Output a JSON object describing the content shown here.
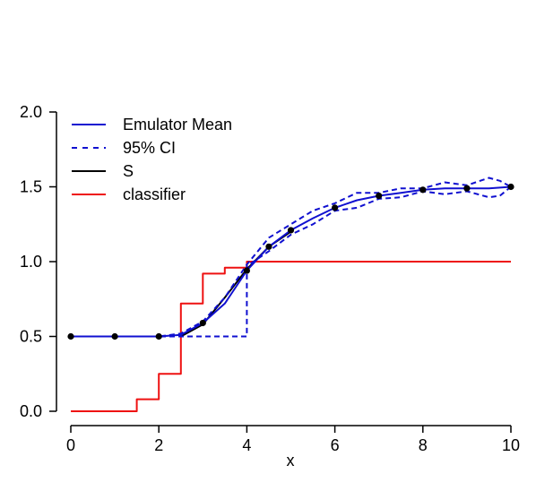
{
  "chart_data": {
    "type": "line",
    "title": "",
    "xlabel": "x",
    "ylabel": "",
    "xlim": [
      0,
      10
    ],
    "ylim": [
      0,
      2
    ],
    "xticks": [
      0,
      2,
      4,
      6,
      8,
      10
    ],
    "yticks": [
      "0.0",
      "0.5",
      "1.0",
      "1.5",
      "2.0"
    ],
    "grid": false,
    "legend_position": "top-left",
    "colors": {
      "blue": "#1010d0",
      "black": "#000000",
      "red": "#ee1111"
    },
    "legend": [
      {
        "label": "Emulator Mean",
        "style": "solid",
        "color": "#1010d0"
      },
      {
        "label": "95% CI",
        "style": "dashed",
        "color": "#1010d0"
      },
      {
        "label": "S",
        "style": "solid",
        "color": "#000000"
      },
      {
        "label": "classifier",
        "style": "solid",
        "color": "#ee1111"
      }
    ],
    "design_points": {
      "x": [
        0,
        1,
        2,
        3,
        4,
        4.5,
        5,
        6,
        7,
        8,
        9,
        10
      ],
      "y": [
        0.5,
        0.5,
        0.5,
        0.59,
        0.94,
        1.1,
        1.21,
        1.36,
        1.44,
        1.48,
        1.49,
        1.5
      ]
    },
    "series": [
      {
        "name": "Emulator Mean",
        "style": "solid",
        "x": [
          0,
          1,
          2,
          2.5,
          3,
          3.5,
          4,
          4.5,
          5,
          5.5,
          6,
          6.5,
          7,
          7.5,
          8,
          8.5,
          9,
          9.5,
          10
        ],
        "y": [
          0.5,
          0.5,
          0.5,
          0.51,
          0.59,
          0.72,
          0.94,
          1.1,
          1.21,
          1.29,
          1.36,
          1.41,
          1.44,
          1.46,
          1.48,
          1.49,
          1.49,
          1.49,
          1.5
        ]
      },
      {
        "name": "95% CI",
        "style": "dashed",
        "x": [
          0,
          1,
          2,
          2.5,
          3,
          3.5,
          4,
          4.5,
          5,
          5.5,
          6,
          6.5,
          7,
          7.5,
          8,
          8.5,
          9,
          9.5,
          9.75,
          10
        ],
        "y": [
          0.5,
          0.5,
          0.5,
          0.52,
          0.6,
          0.76,
          0.98,
          1.16,
          1.25,
          1.34,
          1.39,
          1.46,
          1.46,
          1.49,
          1.49,
          1.53,
          1.51,
          1.56,
          1.54,
          1.5
        ]
      },
      {
        "name": "95% CI",
        "style": "dashed",
        "x": [
          0,
          1,
          2,
          2.5,
          3,
          3.5,
          4,
          4,
          4.5,
          5,
          5.5,
          6,
          6.5,
          7,
          7.5,
          8,
          8.5,
          9,
          9.5,
          9.75,
          10
        ],
        "y": [
          0.5,
          0.5,
          0.5,
          0.5,
          0.5,
          0.5,
          0.5,
          0.97,
          1.07,
          1.18,
          1.25,
          1.34,
          1.36,
          1.42,
          1.43,
          1.47,
          1.45,
          1.47,
          1.43,
          1.44,
          1.5
        ]
      },
      {
        "name": "S",
        "style": "solid",
        "x": [
          2.5,
          3,
          3.5,
          4,
          4.5,
          5
        ],
        "y": [
          0.5,
          0.58,
          0.76,
          0.95,
          1.1,
          1.2
        ]
      },
      {
        "name": "classifier",
        "style": "step",
        "x": [
          0,
          1.5,
          1.5,
          2,
          2,
          2.5,
          2.5,
          3,
          3,
          3.5,
          3.5,
          4,
          4,
          10
        ],
        "y": [
          0,
          0,
          0.08,
          0.08,
          0.25,
          0.25,
          0.72,
          0.72,
          0.92,
          0.92,
          0.96,
          0.96,
          1.0,
          1.0
        ]
      }
    ]
  }
}
